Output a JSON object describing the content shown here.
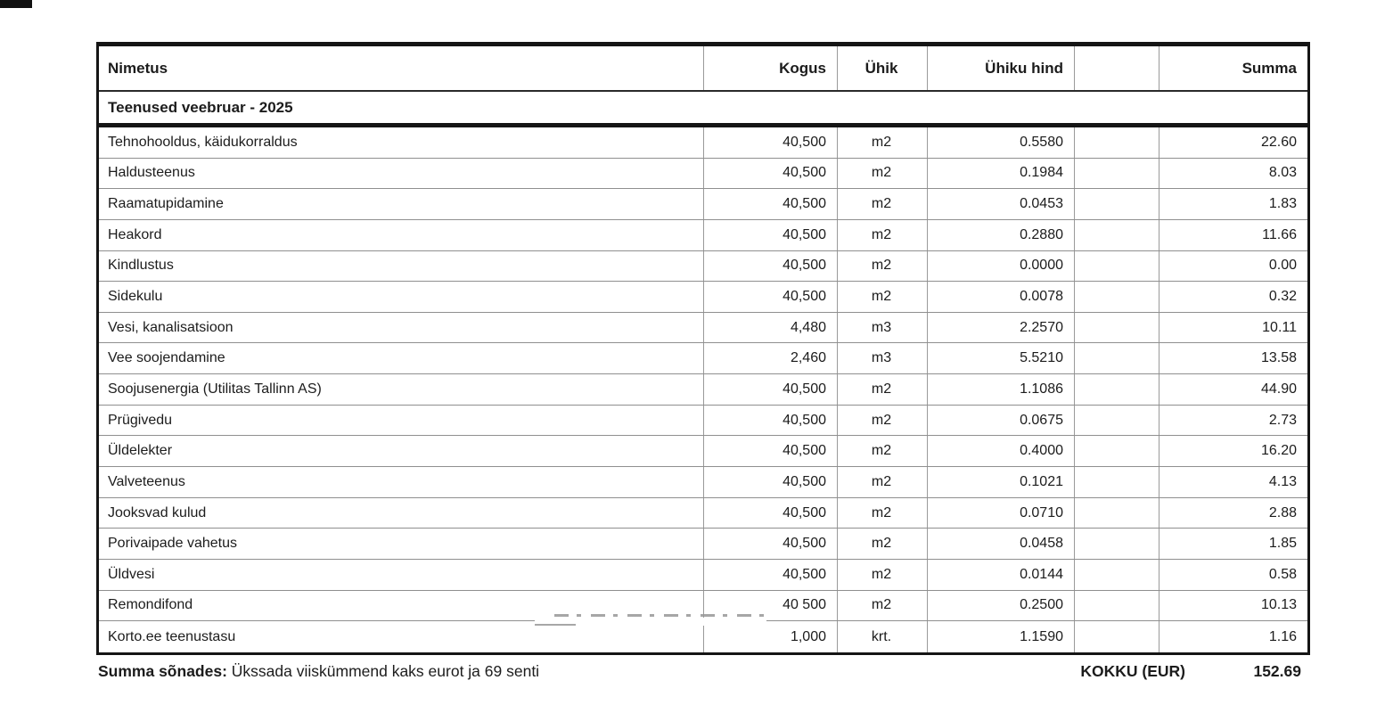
{
  "table": {
    "columns": [
      {
        "key": "name",
        "label": "Nimetus"
      },
      {
        "key": "qty",
        "label": "Kogus"
      },
      {
        "key": "unit",
        "label": "Ühik"
      },
      {
        "key": "unit_price",
        "label": "Ühiku hind"
      },
      {
        "key": "blank",
        "label": ""
      },
      {
        "key": "sum",
        "label": "Summa"
      }
    ],
    "section_header": "Teenused veebruar - 2025",
    "rows": [
      {
        "name": "Tehnohooldus, käidukorraldus",
        "qty": "40,500",
        "unit": "m2",
        "unit_price": "0.5580",
        "blank": "",
        "sum": "22.60"
      },
      {
        "name": "Haldusteenus",
        "qty": "40,500",
        "unit": "m2",
        "unit_price": "0.1984",
        "blank": "",
        "sum": "8.03"
      },
      {
        "name": "Raamatupidamine",
        "qty": "40,500",
        "unit": "m2",
        "unit_price": "0.0453",
        "blank": "",
        "sum": "1.83"
      },
      {
        "name": "Heakord",
        "qty": "40,500",
        "unit": "m2",
        "unit_price": "0.2880",
        "blank": "",
        "sum": "11.66"
      },
      {
        "name": "Kindlustus",
        "qty": "40,500",
        "unit": "m2",
        "unit_price": "0.0000",
        "blank": "",
        "sum": "0.00"
      },
      {
        "name": "Sidekulu",
        "qty": "40,500",
        "unit": "m2",
        "unit_price": "0.0078",
        "blank": "",
        "sum": "0.32"
      },
      {
        "name": "Vesi, kanalisatsioon",
        "qty": "4,480",
        "unit": "m3",
        "unit_price": "2.2570",
        "blank": "",
        "sum": "10.11"
      },
      {
        "name": "Vee soojendamine",
        "qty": "2,460",
        "unit": "m3",
        "unit_price": "5.5210",
        "blank": "",
        "sum": "13.58"
      },
      {
        "name": "Soojusenergia (Utilitas Tallinn AS)",
        "qty": "40,500",
        "unit": "m2",
        "unit_price": "1.1086",
        "blank": "",
        "sum": "44.90"
      },
      {
        "name": "Prügivedu",
        "qty": "40,500",
        "unit": "m2",
        "unit_price": "0.0675",
        "blank": "",
        "sum": "2.73"
      },
      {
        "name": "Üldelekter",
        "qty": "40,500",
        "unit": "m2",
        "unit_price": "0.4000",
        "blank": "",
        "sum": "16.20"
      },
      {
        "name": "Valveteenus",
        "qty": "40,500",
        "unit": "m2",
        "unit_price": "0.1021",
        "blank": "",
        "sum": "4.13"
      },
      {
        "name": "Jooksvad kulud",
        "qty": "40,500",
        "unit": "m2",
        "unit_price": "0.0710",
        "blank": "",
        "sum": "2.88"
      },
      {
        "name": "Porivaipade vahetus",
        "qty": "40,500",
        "unit": "m2",
        "unit_price": "0.0458",
        "blank": "",
        "sum": "1.85"
      },
      {
        "name": "Üldvesi",
        "qty": "40,500",
        "unit": "m2",
        "unit_price": "0.0144",
        "blank": "",
        "sum": "0.58"
      },
      {
        "name": "Remondifond",
        "qty": "40 500",
        "unit": "m2",
        "unit_price": "0.2500",
        "blank": "",
        "sum": "10.13"
      },
      {
        "name": "Korto.ee teenustasu",
        "qty": "1,000",
        "unit": "krt.",
        "unit_price": "1.1590",
        "blank": "",
        "sum": "1.16"
      }
    ]
  },
  "footer": {
    "amount_in_words_label": "Summa sõnades:",
    "amount_in_words": "Ükssada viiskümmend kaks eurot ja 69 senti",
    "total_label": "KOKKU (EUR)",
    "total_value": "152.69"
  },
  "colors": {
    "border_dark": "#151515",
    "border_gray": "#9a9a9a",
    "text": "#1c1c1c",
    "background": "#ffffff"
  }
}
